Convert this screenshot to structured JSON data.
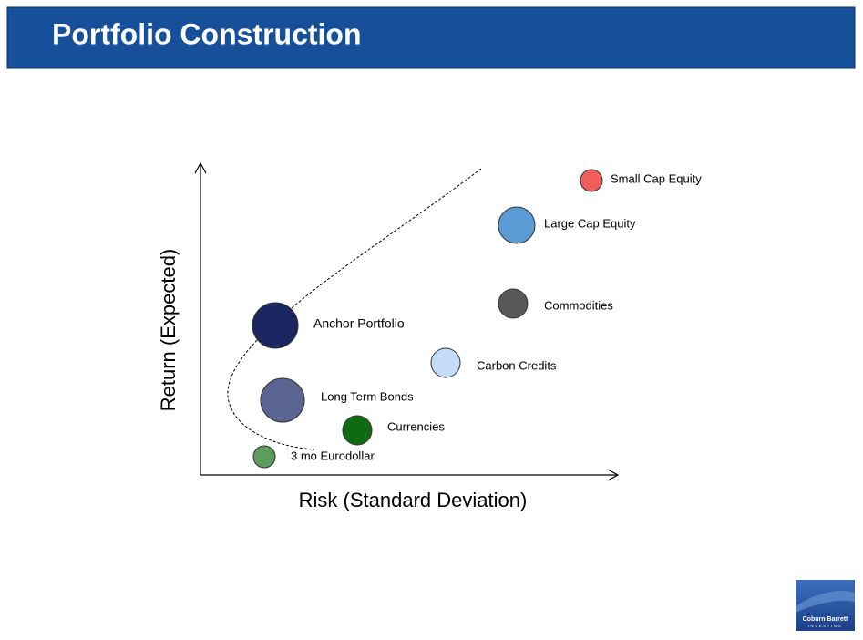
{
  "header": {
    "title": "Portfolio Construction"
  },
  "diagram": {
    "x_axis_label": "Risk (Standard Deviation)",
    "y_axis_label": "Return (Expected)",
    "nodes": [
      {
        "label": "Small Cap Equity"
      },
      {
        "label": "Large Cap Equity"
      },
      {
        "label": "Commodities"
      },
      {
        "label": "Anchor Portfolio"
      },
      {
        "label": "Carbon Credits"
      },
      {
        "label": "Long Term Bonds"
      },
      {
        "label": "Currencies"
      },
      {
        "label": "3 mo Eurodollar"
      }
    ]
  },
  "logo": {
    "name": "Coburn Barrett",
    "tagline": "INVESTING"
  }
}
